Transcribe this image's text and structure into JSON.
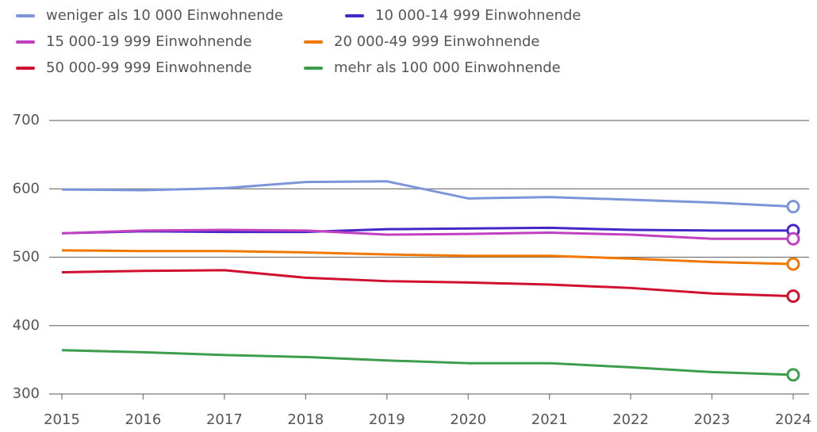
{
  "chart_data": {
    "type": "line",
    "categories": [
      "2015",
      "2016",
      "2017",
      "2018",
      "2019",
      "2020",
      "2021",
      "2022",
      "2023",
      "2024"
    ],
    "series": [
      {
        "name": "weniger als 10 000 Einwohnende",
        "color": "#7b96d8",
        "values": [
          599,
          598,
          601,
          610,
          611,
          586,
          588,
          584,
          580,
          574
        ]
      },
      {
        "name": "10 000-14 999 Einwohnende",
        "color": "#4527c8",
        "values": [
          535,
          538,
          537,
          537,
          541,
          542,
          543,
          540,
          539,
          539
        ]
      },
      {
        "name": "15 000-19 999 Einwohnende",
        "color": "#c040c0",
        "values": [
          535,
          539,
          540,
          539,
          533,
          534,
          536,
          533,
          527,
          527
        ]
      },
      {
        "name": "20 000-49 999 Einwohnende",
        "color": "#f07800",
        "values": [
          510,
          509,
          509,
          507,
          504,
          502,
          502,
          498,
          493,
          490
        ]
      },
      {
        "name": "50 000-99 999 Einwohnende",
        "color": "#d0102e",
        "values": [
          478,
          480,
          481,
          470,
          465,
          463,
          460,
          455,
          447,
          443
        ]
      },
      {
        "name": "mehr als 100 000 Einwohnende",
        "color": "#3c9e4c",
        "values": [
          364,
          361,
          357,
          354,
          349,
          345,
          345,
          339,
          332,
          328
        ]
      }
    ],
    "ylim": [
      300,
      700
    ],
    "yticks": [
      300,
      400,
      500,
      600,
      700
    ],
    "grid": true
  }
}
